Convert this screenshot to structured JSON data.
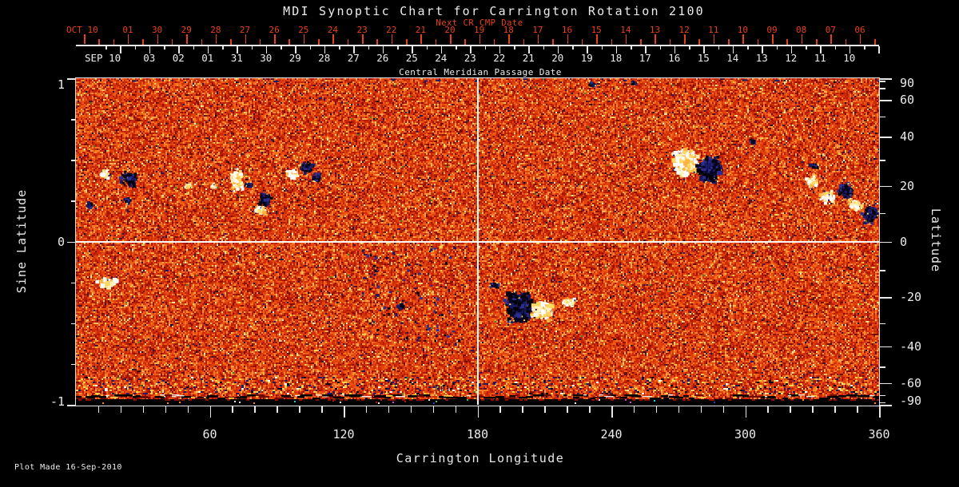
{
  "title": "MDI Synoptic Chart for Carrington Rotation 2100",
  "footer": "Plot Made 16-Sep-2010",
  "embedded_mark": "MDI",
  "colors": {
    "background": "#000000",
    "axis_text": "#ececec",
    "next_cr_accent": "#e84018",
    "crosshair": "#ffffff"
  },
  "top_axis": {
    "label": "Next CR CMP Date",
    "month_label": "OCT 10",
    "day_labels": [
      "01",
      "30",
      "29",
      "28",
      "27",
      "26",
      "25",
      "24",
      "23",
      "22",
      "21",
      "20",
      "19",
      "18",
      "17",
      "16",
      "15",
      "14",
      "13",
      "12",
      "11",
      "10",
      "09",
      "08",
      "07",
      "06"
    ]
  },
  "cmp_axis": {
    "label": "Central Meridian Passage Date",
    "month_label": "SEP 10",
    "day_labels": [
      "03",
      "02",
      "01",
      "31",
      "30",
      "29",
      "28",
      "27",
      "26",
      "25",
      "24",
      "23",
      "22",
      "21",
      "20",
      "19",
      "18",
      "17",
      "16",
      "15",
      "14",
      "13",
      "12",
      "11",
      "10"
    ]
  },
  "left_axis": {
    "label": "Sine Latitude",
    "ticks": [
      "1",
      "0",
      "-1"
    ]
  },
  "right_axis": {
    "label": "Latitude",
    "ticks": [
      "90",
      "60",
      "40",
      "20",
      "0",
      "-20",
      "-40",
      "-60",
      "-90"
    ]
  },
  "bottom_axis": {
    "label": "Carrington Longitude",
    "ticks": [
      "60",
      "120",
      "180",
      "240",
      "300",
      "360"
    ]
  },
  "chart_data": {
    "type": "heatmap",
    "title": "MDI Synoptic Chart for Carrington Rotation 2100",
    "xlabel": "Carrington Longitude",
    "ylabel": "Sine Latitude",
    "ylabel_right": "Latitude",
    "xlim": [
      0,
      360
    ],
    "ylim": [
      -1,
      1
    ],
    "x_ticks": [
      60,
      120,
      180,
      240,
      300,
      360
    ],
    "x_minor_tick_step": 10,
    "y_ticks_sine": [
      1,
      0,
      -1
    ],
    "y_minor_tick_step_sine": 0.25,
    "y_ticks_latitude": [
      90,
      60,
      40,
      20,
      0,
      -20,
      -40,
      -60,
      -90
    ],
    "crosshair": {
      "longitude": 180,
      "sine_latitude": 0
    },
    "colormap": "solar magnetogram: orange-red granular noise base, positive flux white/yellow, negative flux dark navy/black",
    "noise_palette": [
      {
        "c": "#8f0e00",
        "w": 0.06
      },
      {
        "c": "#b51a02",
        "w": 0.16
      },
      {
        "c": "#cf2b06",
        "w": 0.2
      },
      {
        "c": "#e2430c",
        "w": 0.2
      },
      {
        "c": "#ef5d15",
        "w": 0.14
      },
      {
        "c": "#f87723",
        "w": 0.09
      },
      {
        "c": "#ff9335",
        "w": 0.05
      },
      {
        "c": "#ffb24d",
        "w": 0.035
      },
      {
        "c": "#ffd75e",
        "w": 0.018
      },
      {
        "c": "#fff3c0",
        "w": 0.004
      },
      {
        "c": "#6e0a00",
        "w": 0.035
      },
      {
        "c": "#1b1b66",
        "w": 0.013
      },
      {
        "c": "#000020",
        "w": 0.004
      },
      {
        "c": "#2e8a2e",
        "w": 0.001
      }
    ],
    "positive_palette": [
      "#ffffff",
      "#fff2bb",
      "#ffd95e",
      "#ffb143"
    ],
    "negative_palette": [
      "#05051e",
      "#191964",
      "#2d2d90",
      "#000000"
    ],
    "active_regions": [
      {
        "longitude": 12.5,
        "sine_latitude": 0.42,
        "rlon": 2.1,
        "rsin": 0.025,
        "polarity": "positive",
        "strength": 0.8
      },
      {
        "longitude": 23.3,
        "sine_latitude": 0.39,
        "rlon": 3.6,
        "rsin": 0.045,
        "polarity": "negative",
        "strength": 0.8
      },
      {
        "longitude": 5.4,
        "sine_latitude": 0.23,
        "rlon": 1.4,
        "rsin": 0.02,
        "polarity": "negative",
        "strength": 0.5
      },
      {
        "longitude": 22.6,
        "sine_latitude": 0.26,
        "rlon": 1.4,
        "rsin": 0.02,
        "polarity": "negative",
        "strength": 0.5
      },
      {
        "longitude": 13.3,
        "sine_latitude": -0.24,
        "rlon": 4.3,
        "rsin": 0.03,
        "polarity": "positive",
        "strength": 0.5
      },
      {
        "longitude": 49.4,
        "sine_latitude": 0.35,
        "rlon": 1.4,
        "rsin": 0.015,
        "polarity": "positive",
        "strength": 0.4
      },
      {
        "longitude": 60.9,
        "sine_latitude": 0.35,
        "rlon": 1.1,
        "rsin": 0.015,
        "polarity": "positive",
        "strength": 0.4
      },
      {
        "longitude": 71.6,
        "sine_latitude": 0.39,
        "rlon": 2.9,
        "rsin": 0.068,
        "polarity": "positive",
        "strength": 0.9
      },
      {
        "longitude": 77.0,
        "sine_latitude": 0.35,
        "rlon": 1.8,
        "rsin": 0.02,
        "polarity": "negative",
        "strength": 0.5
      },
      {
        "longitude": 84.2,
        "sine_latitude": 0.26,
        "rlon": 2.9,
        "rsin": 0.04,
        "polarity": "negative",
        "strength": 0.9
      },
      {
        "longitude": 82.0,
        "sine_latitude": 0.2,
        "rlon": 2.9,
        "rsin": 0.024,
        "polarity": "positive",
        "strength": 0.9
      },
      {
        "longitude": 96.0,
        "sine_latitude": 0.42,
        "rlon": 2.9,
        "rsin": 0.034,
        "polarity": "positive",
        "strength": 0.7
      },
      {
        "longitude": 103.2,
        "sine_latitude": 0.46,
        "rlon": 3.2,
        "rsin": 0.039,
        "polarity": "negative",
        "strength": 0.8
      },
      {
        "longitude": 107.5,
        "sine_latitude": 0.4,
        "rlon": 2.1,
        "rsin": 0.024,
        "polarity": "negative",
        "strength": 0.6
      },
      {
        "longitude": 145.1,
        "sine_latitude": -0.39,
        "rlon": 1.8,
        "rsin": 0.02,
        "polarity": "negative",
        "strength": 0.6
      },
      {
        "longitude": 187.0,
        "sine_latitude": -0.26,
        "rlon": 1.8,
        "rsin": 0.02,
        "polarity": "negative",
        "strength": 0.5
      },
      {
        "longitude": 198.1,
        "sine_latitude": -0.38,
        "rlon": 6.4,
        "rsin": 0.093,
        "polarity": "negative",
        "strength": 1.0
      },
      {
        "longitude": 208.2,
        "sine_latitude": -0.41,
        "rlon": 4.3,
        "rsin": 0.059,
        "polarity": "positive",
        "strength": 1.0
      },
      {
        "longitude": 221.0,
        "sine_latitude": -0.36,
        "rlon": 3.2,
        "rsin": 0.024,
        "polarity": "positive",
        "strength": 0.6
      },
      {
        "longitude": 231.0,
        "sine_latitude": 0.97,
        "rlon": 1.8,
        "rsin": 0.012,
        "polarity": "negative",
        "strength": 0.4
      },
      {
        "longitude": 249.0,
        "sine_latitude": 0.98,
        "rlon": 1.4,
        "rsin": 0.01,
        "polarity": "negative",
        "strength": 0.3
      },
      {
        "longitude": 272.6,
        "sine_latitude": 0.49,
        "rlon": 5.4,
        "rsin": 0.083,
        "polarity": "positive",
        "strength": 1.0
      },
      {
        "longitude": 283.3,
        "sine_latitude": 0.45,
        "rlon": 5.0,
        "rsin": 0.073,
        "polarity": "negative",
        "strength": 1.0
      },
      {
        "longitude": 302.7,
        "sine_latitude": 0.62,
        "rlon": 1.4,
        "rsin": 0.015,
        "polarity": "negative",
        "strength": 0.4
      },
      {
        "longitude": 330.2,
        "sine_latitude": 0.47,
        "rlon": 2.1,
        "rsin": 0.02,
        "polarity": "negative",
        "strength": 0.5
      },
      {
        "longitude": 329.5,
        "sine_latitude": 0.38,
        "rlon": 2.9,
        "rsin": 0.034,
        "polarity": "positive",
        "strength": 0.7
      },
      {
        "longitude": 335.6,
        "sine_latitude": 0.28,
        "rlon": 3.2,
        "rsin": 0.039,
        "polarity": "positive",
        "strength": 0.8
      },
      {
        "longitude": 344.5,
        "sine_latitude": 0.32,
        "rlon": 3.9,
        "rsin": 0.044,
        "polarity": "negative",
        "strength": 0.9
      },
      {
        "longitude": 348.8,
        "sine_latitude": 0.23,
        "rlon": 2.9,
        "rsin": 0.034,
        "polarity": "positive",
        "strength": 0.8
      },
      {
        "longitude": 355.6,
        "sine_latitude": 0.17,
        "rlon": 3.9,
        "rsin": 0.049,
        "polarity": "negative",
        "strength": 0.9
      }
    ],
    "speckle_zone": {
      "lon_range": [
        128,
        172
      ],
      "sine_lat_range": [
        -0.62,
        -0.02
      ],
      "polarity": "negative",
      "count": 80
    },
    "edge_bands": {
      "south": "multicolor noisy strip with black segments and white dashes along bottom edge",
      "north": "sparse dark flecks along top edge"
    }
  }
}
